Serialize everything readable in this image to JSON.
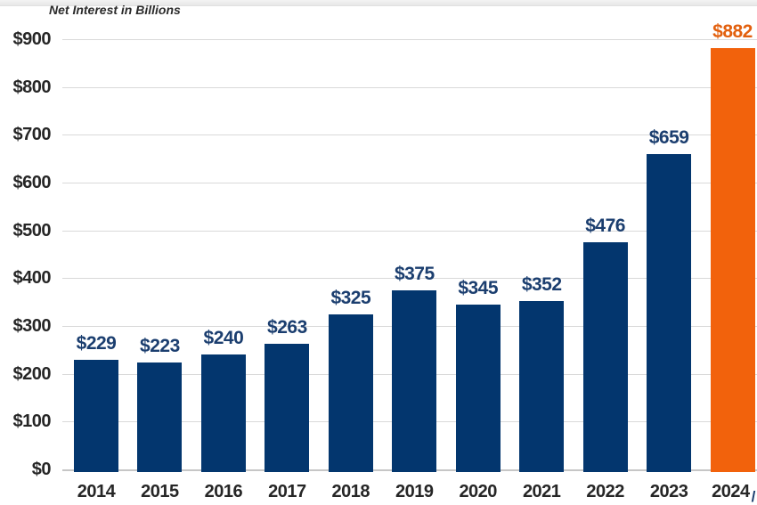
{
  "chart_data": {
    "type": "bar",
    "title": "Net Interest in Billions",
    "categories": [
      "2014",
      "2015",
      "2016",
      "2017",
      "2018",
      "2019",
      "2020",
      "2021",
      "2022",
      "2023",
      "2024"
    ],
    "values": [
      229,
      223,
      240,
      263,
      325,
      375,
      345,
      352,
      476,
      659,
      882
    ],
    "value_labels": [
      "$229",
      "$223",
      "$240",
      "$263",
      "$325",
      "$375",
      "$345",
      "$352",
      "$476",
      "$659",
      "$882"
    ],
    "ytick_labels": [
      "$0",
      "$100",
      "$200",
      "$300",
      "$400",
      "$500",
      "$600",
      "$700",
      "$800",
      "$900"
    ],
    "ylim": [
      0,
      900
    ],
    "ytick_step": 100,
    "xlabel": "",
    "ylabel": "",
    "grid": "horizontal",
    "legend": "none",
    "highlight_index": 10,
    "last_category_suffix": "/",
    "colors": {
      "bar": "#03366E",
      "highlight_bar": "#F2620C",
      "value_label": "#1B3E6F",
      "highlight_value_label": "#E2600E",
      "axis_text": "#262626",
      "gridline": "#D9D9D9",
      "axis_line": "#C6C6C6",
      "title": "#2B2B2B"
    }
  }
}
